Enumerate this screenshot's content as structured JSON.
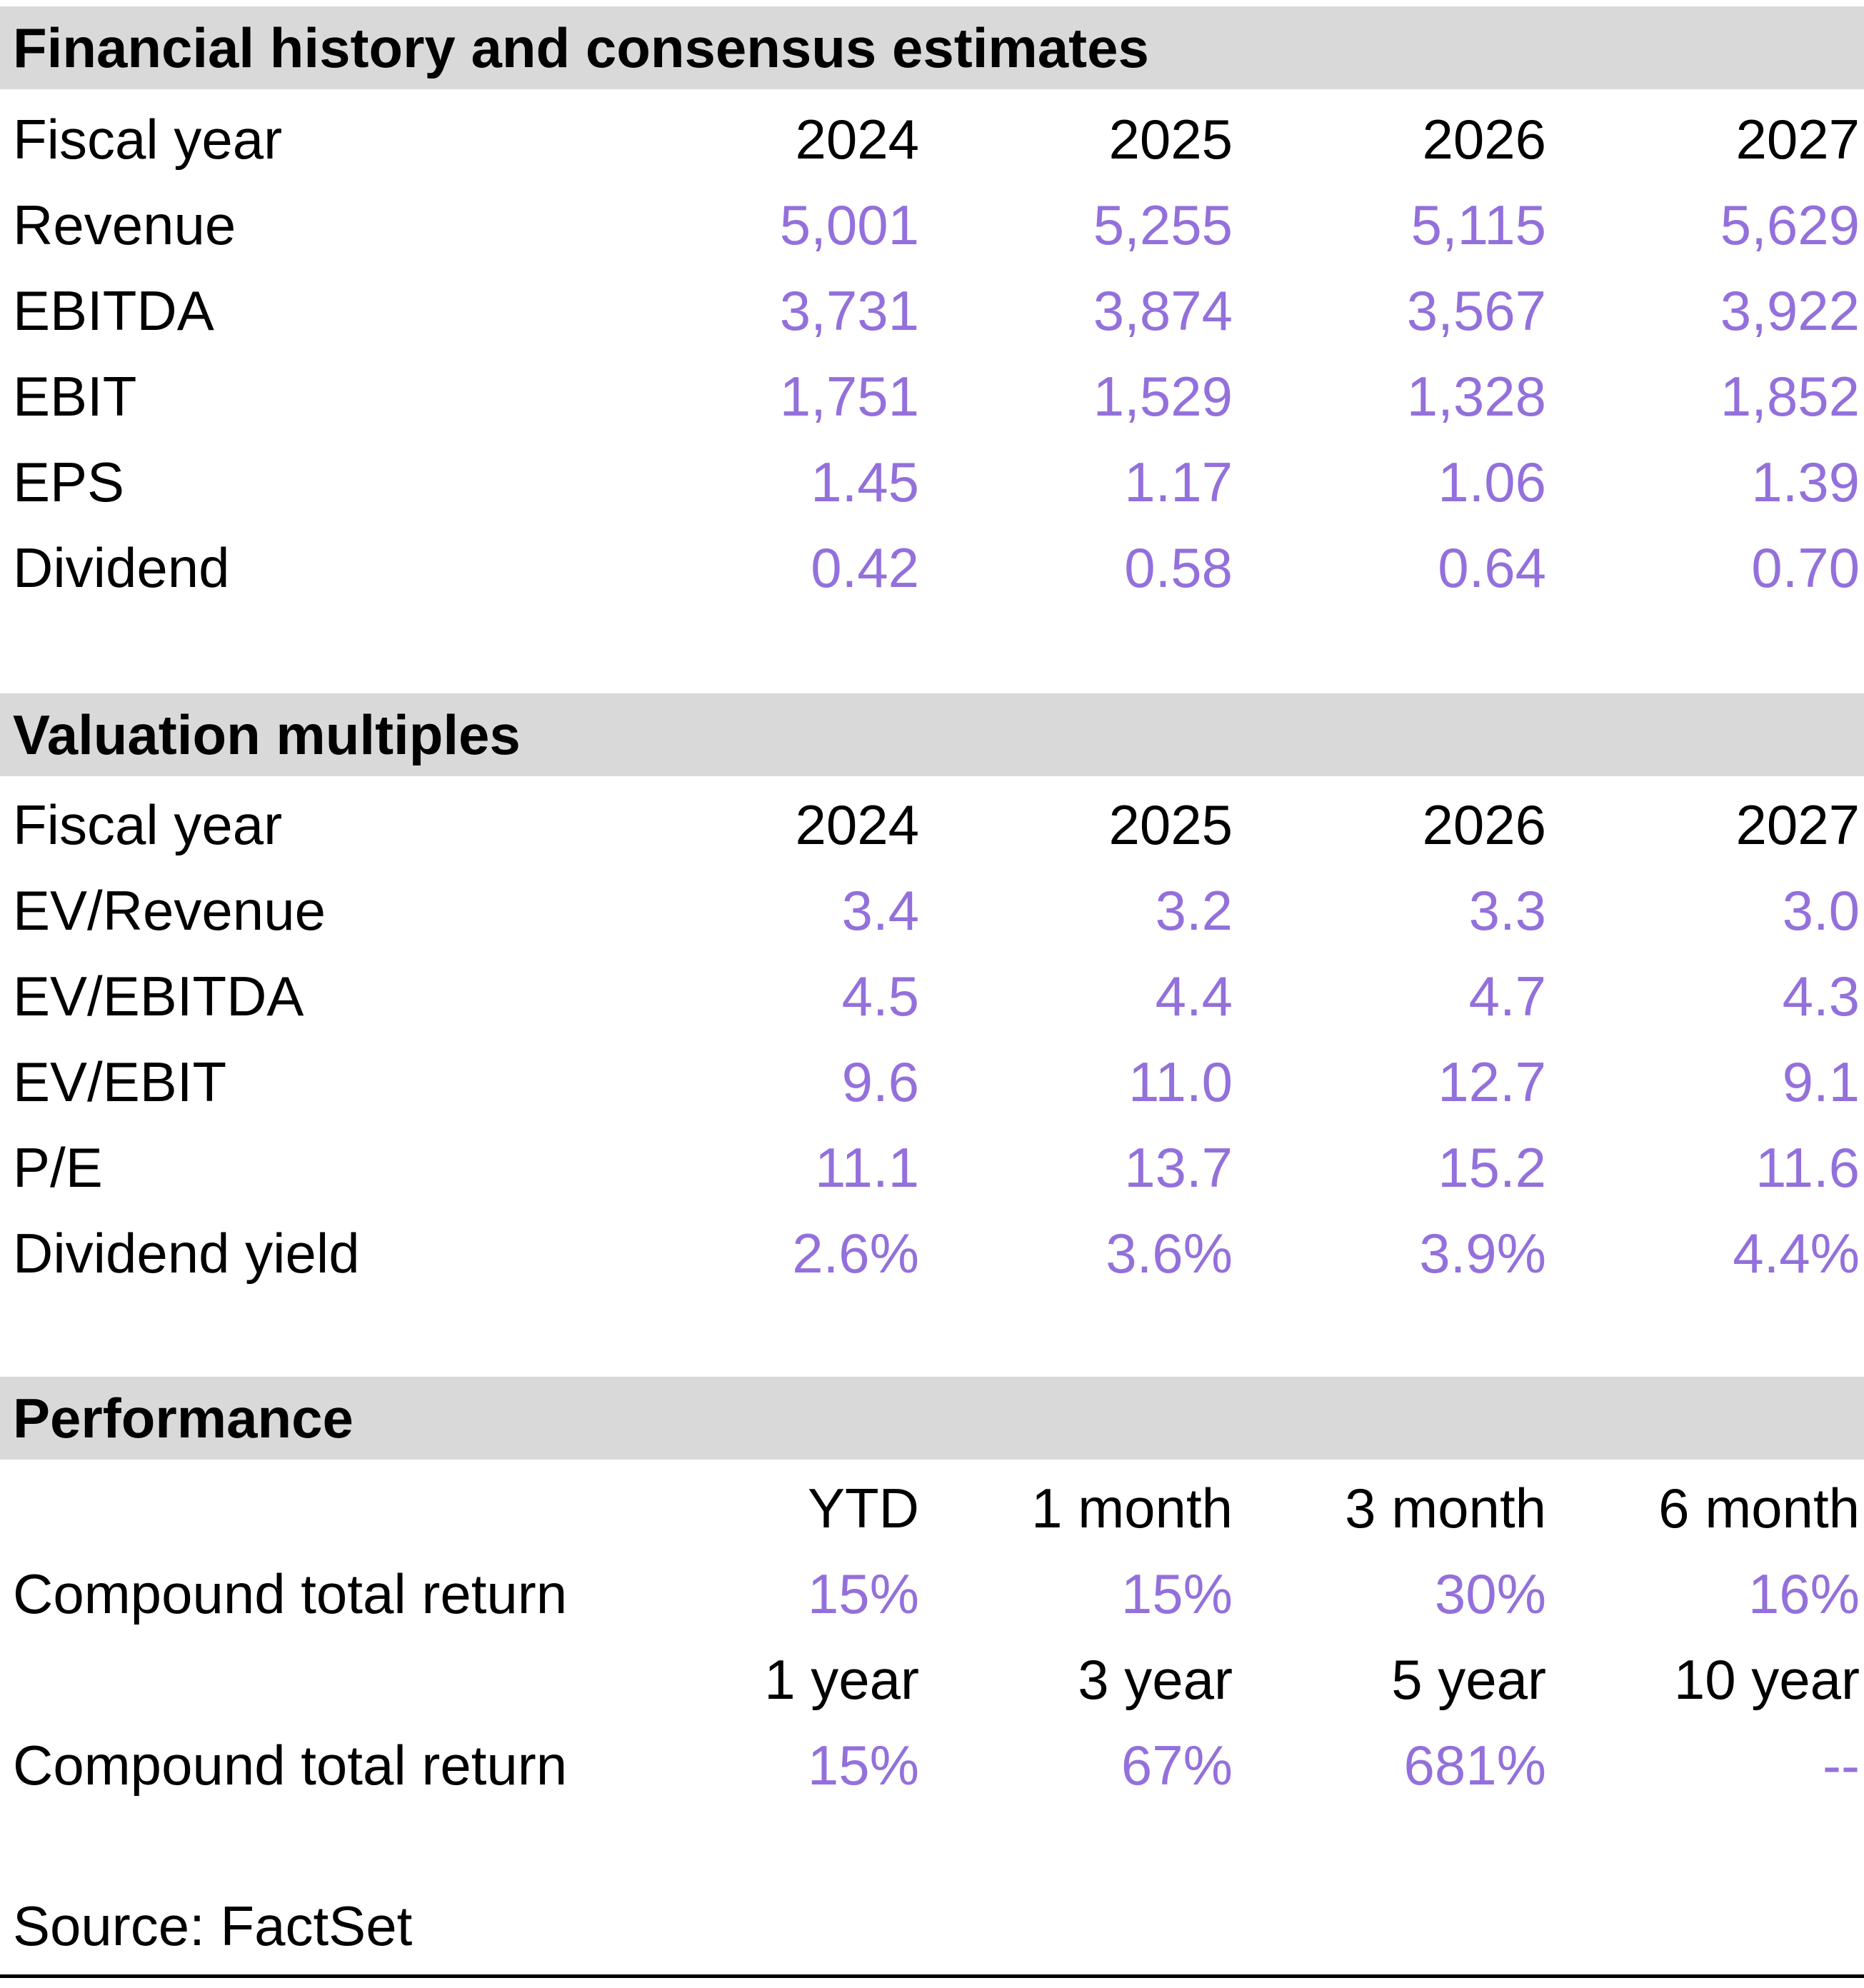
{
  "colors": {
    "accent_purple": "#9370DB",
    "section_header_bg": "#D9D9D9",
    "text_black": "#000000"
  },
  "sections": [
    {
      "title": "Financial history and consensus estimates",
      "fiscal_year_label": "Fiscal year",
      "columns": [
        "2024",
        "2025",
        "2026",
        "2027"
      ],
      "rows": [
        {
          "label": "Revenue",
          "values": [
            "5,001",
            "5,255",
            "5,115",
            "5,629"
          ]
        },
        {
          "label": "EBITDA",
          "values": [
            "3,731",
            "3,874",
            "3,567",
            "3,922"
          ]
        },
        {
          "label": "EBIT",
          "values": [
            "1,751",
            "1,529",
            "1,328",
            "1,852"
          ]
        },
        {
          "label": "EPS",
          "values": [
            "1.45",
            "1.17",
            "1.06",
            "1.39"
          ]
        },
        {
          "label": "Dividend",
          "values": [
            "0.42",
            "0.58",
            "0.64",
            "0.70"
          ]
        }
      ]
    },
    {
      "title": "Valuation multiples",
      "fiscal_year_label": "Fiscal year",
      "columns": [
        "2024",
        "2025",
        "2026",
        "2027"
      ],
      "rows": [
        {
          "label": "EV/Revenue",
          "values": [
            "3.4",
            "3.2",
            "3.3",
            "3.0"
          ]
        },
        {
          "label": "EV/EBITDA",
          "values": [
            "4.5",
            "4.4",
            "4.7",
            "4.3"
          ]
        },
        {
          "label": "EV/EBIT",
          "values": [
            "9.6",
            "11.0",
            "12.7",
            "9.1"
          ]
        },
        {
          "label": "P/E",
          "values": [
            "11.1",
            "13.7",
            "15.2",
            "11.6"
          ]
        },
        {
          "label": "Dividend yield",
          "values": [
            "2.6%",
            "3.6%",
            "3.9%",
            "4.4%"
          ]
        }
      ]
    }
  ],
  "performance": {
    "title": "Performance",
    "groups": [
      {
        "columns": [
          "YTD",
          "1 month",
          "3 month",
          "6 month"
        ],
        "row_label": "Compound total return",
        "values": [
          "15%",
          "15%",
          "30%",
          "16%"
        ]
      },
      {
        "columns": [
          "1 year",
          "3 year",
          "5 year",
          "10 year"
        ],
        "row_label": "Compound total return",
        "values": [
          "15%",
          "67%",
          "681%",
          "--"
        ]
      }
    ]
  },
  "source_note": "Source: FactSet"
}
